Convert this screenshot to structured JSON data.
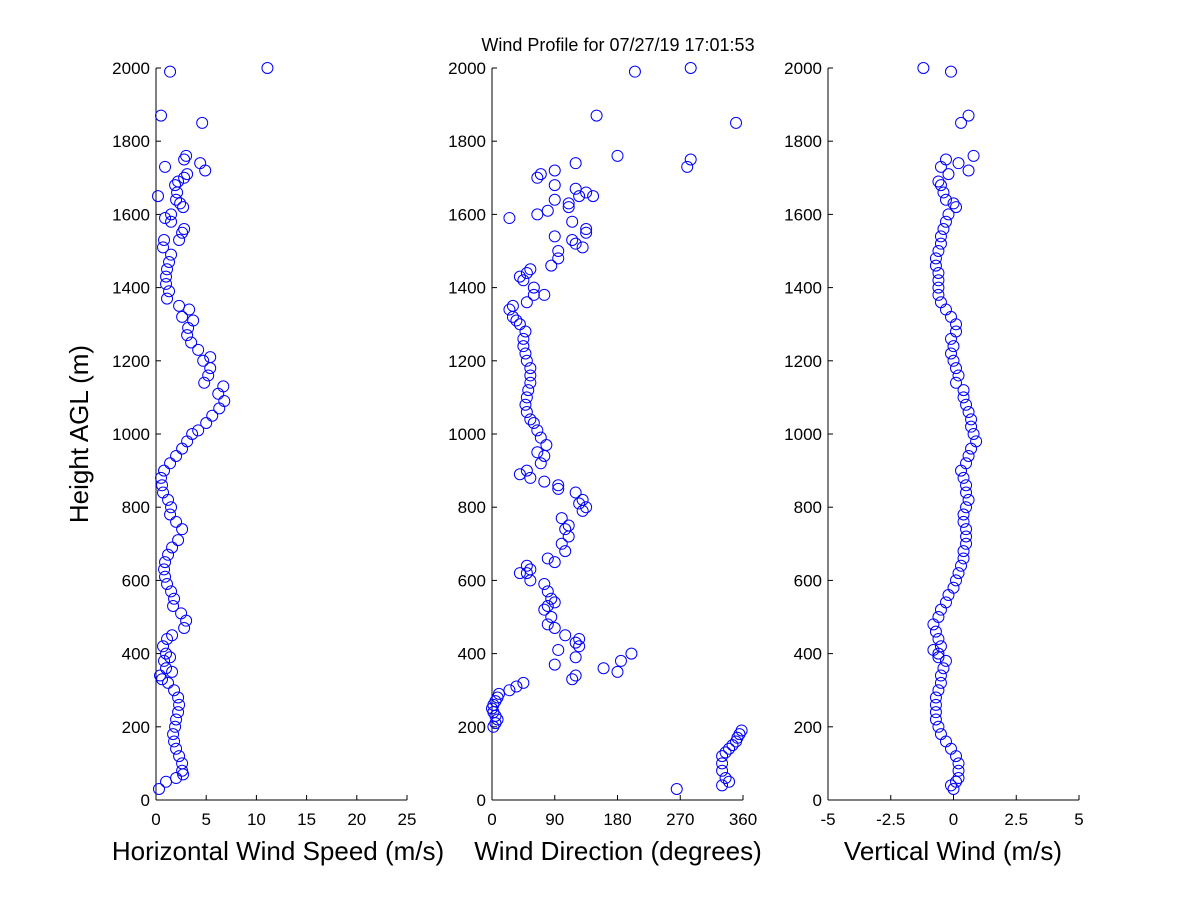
{
  "figure_title": "Wind Profile for  07/27/19 17:01:53",
  "chart_data": [
    {
      "type": "scatter",
      "title": "Wind Profile for  07/27/19 17:01:53",
      "xlabel": "Horizontal Wind Speed (m/s)",
      "ylabel": "Height AGL (m)",
      "xlim": [
        0,
        25
      ],
      "ylim": [
        0,
        2000
      ],
      "xticks": [
        0,
        5,
        10,
        15,
        20,
        25
      ],
      "xtick_labels": [
        "0",
        "5",
        "10",
        "15",
        "20",
        "25"
      ],
      "yticks": [
        0,
        200,
        400,
        600,
        800,
        1000,
        1200,
        1400,
        1600,
        1800,
        2000
      ],
      "ytick_labels": [
        "0",
        "200",
        "400",
        "600",
        "800",
        "1000",
        "1200",
        "1400",
        "1600",
        "1800",
        "2000"
      ],
      "marker": "open-circle",
      "color": "#0000ff",
      "points": [
        [
          0.3,
          30
        ],
        [
          1.0,
          50
        ],
        [
          2.0,
          60
        ],
        [
          2.7,
          70
        ],
        [
          2.6,
          80
        ],
        [
          2.6,
          100
        ],
        [
          2.3,
          120
        ],
        [
          2.0,
          140
        ],
        [
          1.8,
          160
        ],
        [
          1.7,
          180
        ],
        [
          1.9,
          200
        ],
        [
          2.0,
          220
        ],
        [
          2.2,
          240
        ],
        [
          2.3,
          260
        ],
        [
          2.2,
          280
        ],
        [
          1.8,
          300
        ],
        [
          1.2,
          320
        ],
        [
          0.6,
          330
        ],
        [
          0.4,
          340
        ],
        [
          1.6,
          350
        ],
        [
          1.0,
          360
        ],
        [
          0.8,
          380
        ],
        [
          1.4,
          390
        ],
        [
          1.0,
          400
        ],
        [
          0.7,
          420
        ],
        [
          1.1,
          440
        ],
        [
          1.6,
          450
        ],
        [
          2.8,
          470
        ],
        [
          3.0,
          490
        ],
        [
          2.5,
          510
        ],
        [
          1.7,
          530
        ],
        [
          1.8,
          550
        ],
        [
          1.5,
          570
        ],
        [
          1.1,
          590
        ],
        [
          0.9,
          610
        ],
        [
          0.8,
          630
        ],
        [
          0.9,
          650
        ],
        [
          1.2,
          670
        ],
        [
          1.6,
          690
        ],
        [
          2.2,
          710
        ],
        [
          2.6,
          740
        ],
        [
          2.0,
          760
        ],
        [
          1.4,
          780
        ],
        [
          1.5,
          800
        ],
        [
          1.2,
          820
        ],
        [
          0.7,
          840
        ],
        [
          0.6,
          860
        ],
        [
          0.5,
          880
        ],
        [
          0.8,
          900
        ],
        [
          1.4,
          920
        ],
        [
          2.0,
          940
        ],
        [
          2.6,
          960
        ],
        [
          3.1,
          980
        ],
        [
          3.6,
          1000
        ],
        [
          4.2,
          1010
        ],
        [
          5.0,
          1030
        ],
        [
          5.6,
          1050
        ],
        [
          6.3,
          1070
        ],
        [
          6.8,
          1090
        ],
        [
          6.2,
          1110
        ],
        [
          6.7,
          1130
        ],
        [
          4.8,
          1140
        ],
        [
          5.2,
          1160
        ],
        [
          5.4,
          1180
        ],
        [
          4.7,
          1200
        ],
        [
          5.4,
          1210
        ],
        [
          4.2,
          1230
        ],
        [
          3.5,
          1250
        ],
        [
          3.1,
          1270
        ],
        [
          3.2,
          1290
        ],
        [
          3.7,
          1310
        ],
        [
          2.6,
          1320
        ],
        [
          3.3,
          1340
        ],
        [
          2.3,
          1350
        ],
        [
          1.1,
          1370
        ],
        [
          1.3,
          1390
        ],
        [
          1.0,
          1410
        ],
        [
          1.0,
          1430
        ],
        [
          1.1,
          1450
        ],
        [
          1.3,
          1470
        ],
        [
          1.5,
          1490
        ],
        [
          0.7,
          1510
        ],
        [
          0.8,
          1530
        ],
        [
          2.3,
          1530
        ],
        [
          2.6,
          1550
        ],
        [
          2.8,
          1560
        ],
        [
          1.5,
          1580
        ],
        [
          0.9,
          1590
        ],
        [
          1.5,
          1600
        ],
        [
          2.7,
          1620
        ],
        [
          2.4,
          1630
        ],
        [
          2.0,
          1640
        ],
        [
          0.2,
          1650
        ],
        [
          2.1,
          1660
        ],
        [
          1.9,
          1680
        ],
        [
          2.2,
          1690
        ],
        [
          2.8,
          1700
        ],
        [
          3.1,
          1710
        ],
        [
          4.9,
          1720
        ],
        [
          0.9,
          1730
        ],
        [
          4.4,
          1740
        ],
        [
          2.8,
          1750
        ],
        [
          3.0,
          1760
        ],
        [
          4.6,
          1850
        ],
        [
          0.5,
          1870
        ],
        [
          1.4,
          1990
        ],
        [
          11.1,
          2000
        ]
      ]
    },
    {
      "type": "scatter",
      "xlabel": "Wind Direction (degrees)",
      "xlim": [
        0,
        360
      ],
      "ylim": [
        0,
        2000
      ],
      "xticks": [
        0,
        90,
        180,
        270,
        360
      ],
      "xtick_labels": [
        "0",
        "90",
        "180",
        "270",
        "360"
      ],
      "yticks": [
        0,
        200,
        400,
        600,
        800,
        1000,
        1200,
        1400,
        1600,
        1800,
        2000
      ],
      "ytick_labels": [
        "0",
        "200",
        "400",
        "600",
        "800",
        "1000",
        "1200",
        "1400",
        "1600",
        "1800",
        "2000"
      ],
      "marker": "open-circle",
      "color": "#0000ff",
      "points": [
        [
          265,
          30
        ],
        [
          330,
          40
        ],
        [
          340,
          50
        ],
        [
          335,
          60
        ],
        [
          330,
          80
        ],
        [
          330,
          100
        ],
        [
          330,
          120
        ],
        [
          335,
          130
        ],
        [
          340,
          140
        ],
        [
          345,
          150
        ],
        [
          350,
          160
        ],
        [
          352,
          170
        ],
        [
          355,
          180
        ],
        [
          358,
          190
        ],
        [
          2,
          200
        ],
        [
          5,
          210
        ],
        [
          8,
          220
        ],
        [
          5,
          230
        ],
        [
          2,
          240
        ],
        [
          0,
          250
        ],
        [
          2,
          260
        ],
        [
          5,
          270
        ],
        [
          8,
          280
        ],
        [
          10,
          290
        ],
        [
          25,
          300
        ],
        [
          35,
          310
        ],
        [
          45,
          320
        ],
        [
          115,
          330
        ],
        [
          120,
          340
        ],
        [
          180,
          350
        ],
        [
          160,
          360
        ],
        [
          90,
          370
        ],
        [
          185,
          380
        ],
        [
          120,
          390
        ],
        [
          200,
          400
        ],
        [
          95,
          410
        ],
        [
          125,
          420
        ],
        [
          120,
          430
        ],
        [
          125,
          440
        ],
        [
          105,
          450
        ],
        [
          90,
          470
        ],
        [
          80,
          480
        ],
        [
          85,
          500
        ],
        [
          75,
          520
        ],
        [
          80,
          530
        ],
        [
          90,
          540
        ],
        [
          85,
          550
        ],
        [
          80,
          570
        ],
        [
          75,
          590
        ],
        [
          55,
          600
        ],
        [
          40,
          620
        ],
        [
          50,
          620
        ],
        [
          55,
          630
        ],
        [
          50,
          640
        ],
        [
          90,
          650
        ],
        [
          80,
          660
        ],
        [
          105,
          680
        ],
        [
          100,
          700
        ],
        [
          110,
          720
        ],
        [
          105,
          740
        ],
        [
          110,
          750
        ],
        [
          100,
          770
        ],
        [
          130,
          790
        ],
        [
          135,
          800
        ],
        [
          125,
          810
        ],
        [
          130,
          820
        ],
        [
          120,
          840
        ],
        [
          95,
          850
        ],
        [
          95,
          860
        ],
        [
          75,
          870
        ],
        [
          40,
          890
        ],
        [
          50,
          900
        ],
        [
          55,
          880
        ],
        [
          70,
          920
        ],
        [
          75,
          940
        ],
        [
          65,
          950
        ],
        [
          78,
          970
        ],
        [
          70,
          990
        ],
        [
          65,
          1010
        ],
        [
          60,
          1030
        ],
        [
          55,
          1040
        ],
        [
          50,
          1060
        ],
        [
          48,
          1080
        ],
        [
          50,
          1100
        ],
        [
          52,
          1120
        ],
        [
          55,
          1140
        ],
        [
          55,
          1160
        ],
        [
          55,
          1180
        ],
        [
          50,
          1200
        ],
        [
          48,
          1220
        ],
        [
          45,
          1240
        ],
        [
          45,
          1260
        ],
        [
          48,
          1280
        ],
        [
          40,
          1300
        ],
        [
          35,
          1310
        ],
        [
          30,
          1320
        ],
        [
          25,
          1340
        ],
        [
          30,
          1350
        ],
        [
          50,
          1360
        ],
        [
          60,
          1380
        ],
        [
          75,
          1380
        ],
        [
          60,
          1400
        ],
        [
          45,
          1420
        ],
        [
          40,
          1430
        ],
        [
          50,
          1440
        ],
        [
          55,
          1450
        ],
        [
          85,
          1460
        ],
        [
          95,
          1480
        ],
        [
          95,
          1500
        ],
        [
          130,
          1510
        ],
        [
          120,
          1520
        ],
        [
          115,
          1530
        ],
        [
          90,
          1540
        ],
        [
          135,
          1550
        ],
        [
          135,
          1560
        ],
        [
          115,
          1580
        ],
        [
          25,
          1590
        ],
        [
          65,
          1600
        ],
        [
          80,
          1610
        ],
        [
          110,
          1620
        ],
        [
          110,
          1630
        ],
        [
          90,
          1640
        ],
        [
          125,
          1650
        ],
        [
          145,
          1650
        ],
        [
          135,
          1660
        ],
        [
          120,
          1670
        ],
        [
          90,
          1680
        ],
        [
          65,
          1700
        ],
        [
          70,
          1710
        ],
        [
          90,
          1720
        ],
        [
          280,
          1730
        ],
        [
          120,
          1740
        ],
        [
          285,
          1750
        ],
        [
          180,
          1760
        ],
        [
          350,
          1850
        ],
        [
          150,
          1870
        ],
        [
          205,
          1990
        ],
        [
          285,
          2000
        ]
      ]
    },
    {
      "type": "scatter",
      "xlabel": "Vertical Wind (m/s)",
      "xlim": [
        -5,
        5
      ],
      "ylim": [
        0,
        2000
      ],
      "xticks": [
        -5,
        -2.5,
        0,
        2.5,
        5
      ],
      "xtick_labels": [
        "-5",
        "-2.5",
        "0",
        "2.5",
        "5"
      ],
      "yticks": [
        0,
        200,
        400,
        600,
        800,
        1000,
        1200,
        1400,
        1600,
        1800,
        2000
      ],
      "ytick_labels": [
        "0",
        "200",
        "400",
        "600",
        "800",
        "1000",
        "1200",
        "1400",
        "1600",
        "1800",
        "2000"
      ],
      "marker": "open-circle",
      "color": "#0000ff",
      "points": [
        [
          0.0,
          30
        ],
        [
          -0.1,
          40
        ],
        [
          0.1,
          50
        ],
        [
          0.2,
          60
        ],
        [
          0.2,
          80
        ],
        [
          0.2,
          100
        ],
        [
          0.1,
          120
        ],
        [
          -0.1,
          140
        ],
        [
          -0.3,
          160
        ],
        [
          -0.5,
          180
        ],
        [
          -0.6,
          200
        ],
        [
          -0.7,
          220
        ],
        [
          -0.7,
          240
        ],
        [
          -0.7,
          260
        ],
        [
          -0.7,
          280
        ],
        [
          -0.6,
          300
        ],
        [
          -0.5,
          320
        ],
        [
          -0.5,
          340
        ],
        [
          -0.4,
          360
        ],
        [
          -0.3,
          380
        ],
        [
          -0.6,
          390
        ],
        [
          -0.6,
          400
        ],
        [
          -0.8,
          410
        ],
        [
          -0.5,
          420
        ],
        [
          -0.6,
          440
        ],
        [
          -0.7,
          460
        ],
        [
          -0.8,
          480
        ],
        [
          -0.6,
          500
        ],
        [
          -0.5,
          520
        ],
        [
          -0.3,
          540
        ],
        [
          -0.2,
          560
        ],
        [
          0.0,
          580
        ],
        [
          0.1,
          600
        ],
        [
          0.2,
          620
        ],
        [
          0.3,
          640
        ],
        [
          0.4,
          660
        ],
        [
          0.4,
          680
        ],
        [
          0.5,
          700
        ],
        [
          0.5,
          720
        ],
        [
          0.5,
          740
        ],
        [
          0.4,
          760
        ],
        [
          0.4,
          780
        ],
        [
          0.5,
          800
        ],
        [
          0.6,
          820
        ],
        [
          0.5,
          840
        ],
        [
          0.5,
          860
        ],
        [
          0.4,
          880
        ],
        [
          0.3,
          900
        ],
        [
          0.5,
          920
        ],
        [
          0.6,
          940
        ],
        [
          0.7,
          960
        ],
        [
          0.9,
          980
        ],
        [
          0.8,
          1000
        ],
        [
          0.7,
          1020
        ],
        [
          0.7,
          1040
        ],
        [
          0.6,
          1060
        ],
        [
          0.5,
          1080
        ],
        [
          0.4,
          1100
        ],
        [
          0.4,
          1120
        ],
        [
          0.1,
          1140
        ],
        [
          0.2,
          1160
        ],
        [
          0.1,
          1180
        ],
        [
          0.0,
          1200
        ],
        [
          -0.1,
          1220
        ],
        [
          0.0,
          1240
        ],
        [
          -0.1,
          1260
        ],
        [
          0.1,
          1280
        ],
        [
          0.1,
          1300
        ],
        [
          -0.1,
          1320
        ],
        [
          -0.3,
          1340
        ],
        [
          -0.5,
          1360
        ],
        [
          -0.6,
          1380
        ],
        [
          -0.6,
          1400
        ],
        [
          -0.6,
          1420
        ],
        [
          -0.6,
          1440
        ],
        [
          -0.7,
          1460
        ],
        [
          -0.7,
          1480
        ],
        [
          -0.6,
          1500
        ],
        [
          -0.5,
          1520
        ],
        [
          -0.5,
          1540
        ],
        [
          -0.4,
          1560
        ],
        [
          -0.3,
          1580
        ],
        [
          -0.2,
          1600
        ],
        [
          0.1,
          1620
        ],
        [
          0.0,
          1630
        ],
        [
          -0.3,
          1640
        ],
        [
          -0.4,
          1660
        ],
        [
          -0.5,
          1680
        ],
        [
          -0.6,
          1690
        ],
        [
          -0.2,
          1710
        ],
        [
          0.6,
          1720
        ],
        [
          -0.5,
          1730
        ],
        [
          0.2,
          1740
        ],
        [
          -0.3,
          1750
        ],
        [
          0.8,
          1760
        ],
        [
          0.3,
          1850
        ],
        [
          0.6,
          1870
        ],
        [
          -0.1,
          1990
        ],
        [
          -1.2,
          2000
        ]
      ]
    }
  ]
}
